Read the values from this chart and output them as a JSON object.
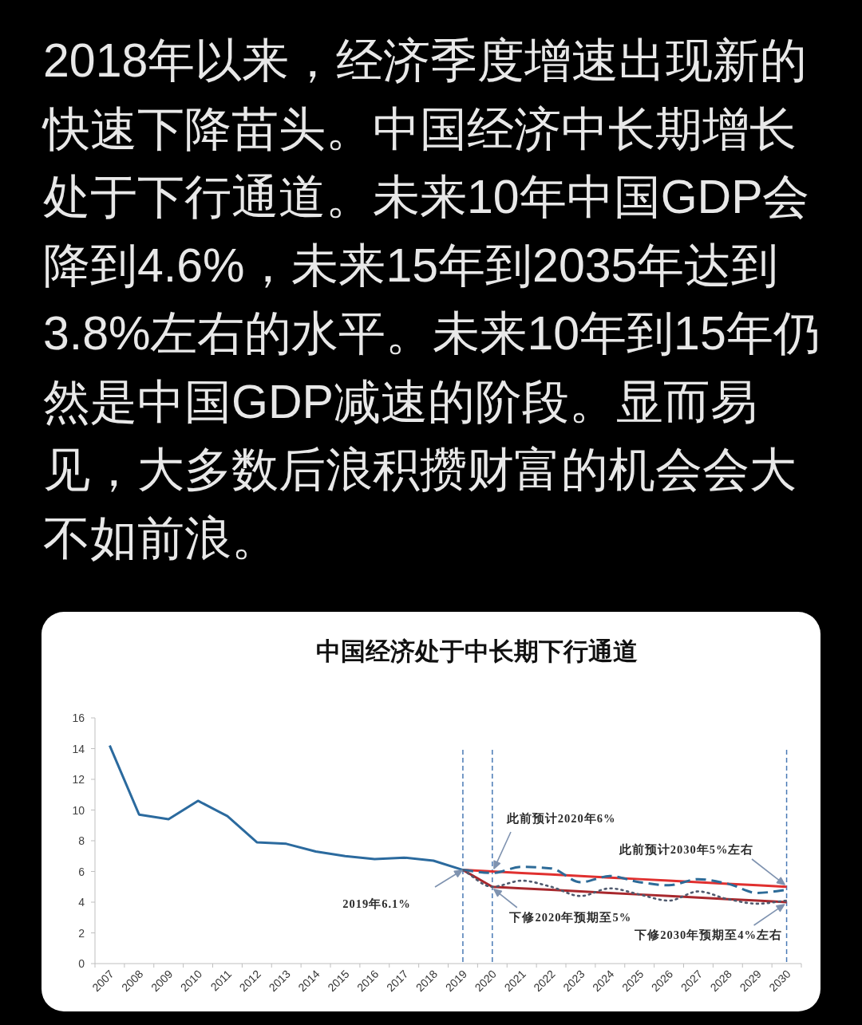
{
  "chart_data": {
    "type": "line",
    "title": "中国经济处于中长期下行通道",
    "annotations": [
      "2018年以来，经济季度增速出现新的快速下降苗头。中国经济中长期增长处于下行通道。未来10年中国GDP会降到4.6%，未来15年到2035年达到3.8%左右的水平。未来10年到15年仍然是中国GDP减速的阶段。显而易见，大多数后浪积攒财富的机会会大不如前浪。",
      "2019年6.1%",
      "此前预计2020年6%",
      {
        "text": "下修2020年预期至5%",
        "x": "2020",
        "y": 5
      },
      "此前预计2030年5%左右",
      {
        "text": "下修2030年预期至4%左右",
        "x": "2030",
        "y": 4
      }
    ],
    "categories": [
      "2007",
      "2008",
      "2009",
      "2010",
      "2011",
      "2012",
      "2013",
      "2014",
      "2015",
      "2016",
      "2017",
      "2018",
      "2019",
      "2020",
      "2021",
      "2022",
      "2023",
      "2024",
      "2025",
      "2026",
      "2027",
      "2028",
      "2029",
      "2030"
    ],
    "ylim": [
      0,
      16
    ],
    "yticks": [
      0,
      2,
      4,
      6,
      8,
      10,
      12,
      14,
      16
    ],
    "ref_lines": [
      {
        "axis": "x",
        "value": "2019",
        "color": "#4a7ab5",
        "line_style": "dashed"
      },
      {
        "axis": "x",
        "value": "2020",
        "color": "#4a7ab5",
        "line_style": "dashed"
      },
      {
        "axis": "x",
        "value": "2030",
        "color": "#4a7ab5",
        "line_style": "dashed"
      }
    ],
    "series": [
      {
        "color": "#2b6a9e",
        "line_style": "solid",
        "values": [
          14.2,
          9.7,
          9.4,
          10.6,
          9.6,
          7.9,
          7.8,
          7.3,
          7.0,
          6.8,
          6.9,
          6.7,
          6.1,
          null,
          null,
          null,
          null,
          null,
          null,
          null,
          null,
          null,
          null,
          null
        ]
      },
      {
        "color": "#e0302f",
        "line_style": "solid",
        "values": [
          null,
          null,
          null,
          null,
          null,
          null,
          null,
          null,
          null,
          null,
          null,
          null,
          6.1,
          6.0,
          5.9,
          5.8,
          5.7,
          5.6,
          5.5,
          5.4,
          5.3,
          5.2,
          5.1,
          5.0
        ]
      },
      {
        "color": "#a8282d",
        "line_style": "solid",
        "values": [
          null,
          null,
          null,
          null,
          null,
          null,
          null,
          null,
          null,
          null,
          null,
          null,
          6.1,
          5.0,
          4.9,
          4.8,
          4.7,
          4.6,
          4.5,
          4.4,
          4.3,
          4.2,
          4.1,
          4.0
        ]
      },
      {
        "color": "#2d6b98",
        "line_style": "dashed",
        "values": [
          null,
          null,
          null,
          null,
          null,
          null,
          null,
          null,
          null,
          null,
          null,
          null,
          6.1,
          5.9,
          6.3,
          6.2,
          5.3,
          5.7,
          5.3,
          5.1,
          5.5,
          5.2,
          4.6,
          4.8
        ]
      },
      {
        "color": "#505a6e",
        "line_style": "dotted",
        "values": [
          null,
          null,
          null,
          null,
          null,
          null,
          null,
          null,
          null,
          null,
          null,
          null,
          6.1,
          5.0,
          5.4,
          5.0,
          4.4,
          4.9,
          4.5,
          4.1,
          4.7,
          4.2,
          3.9,
          4.1
        ]
      }
    ]
  }
}
